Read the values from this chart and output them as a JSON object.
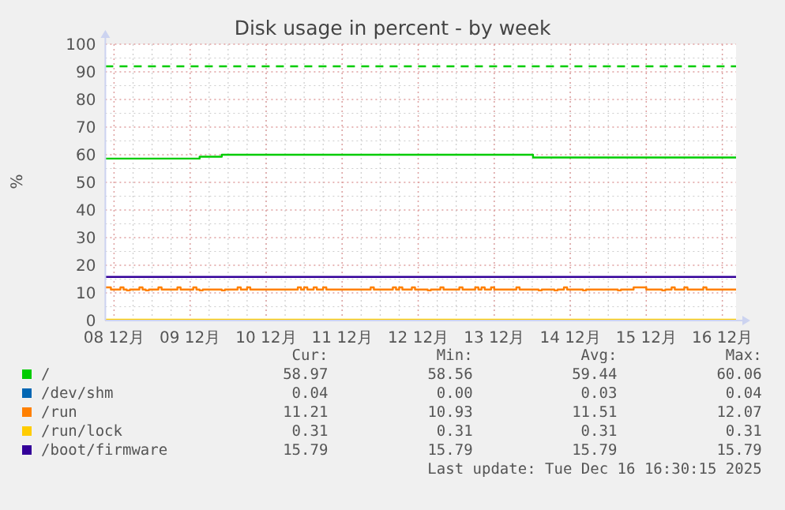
{
  "chart_data": {
    "type": "step",
    "title": "Disk usage in percent - by week",
    "ylabel": "%",
    "xlim": [
      "2025-12-07T21:15",
      "2025-12-16T04:20"
    ],
    "xticks": [
      {
        "value": "2025-12-08T00:00",
        "label": "08 12月"
      },
      {
        "value": "2025-12-09T00:00",
        "label": "09 12月"
      },
      {
        "value": "2025-12-10T00:00",
        "label": "10 12月"
      },
      {
        "value": "2025-12-11T00:00",
        "label": "11 12月"
      },
      {
        "value": "2025-12-12T00:00",
        "label": "12 12月"
      },
      {
        "value": "2025-12-13T00:00",
        "label": "13 12月"
      },
      {
        "value": "2025-12-14T00:00",
        "label": "14 12月"
      },
      {
        "value": "2025-12-15T00:00",
        "label": "15 12月"
      },
      {
        "value": "2025-12-16T00:00",
        "label": "16 12月"
      }
    ],
    "ylim": [
      0,
      100
    ],
    "yticks": [
      0,
      10,
      20,
      30,
      40,
      50,
      60,
      70,
      80,
      90,
      100
    ],
    "grid": true,
    "legend": "bottom",
    "series": [
      {
        "name": "/",
        "color": "#00cc00",
        "x": [
          "2025-12-07T21:15",
          "2025-12-09T03:00",
          "2025-12-09T10:00",
          "2025-12-13T12:15",
          "2025-12-16T04:20"
        ],
        "values": [
          58.6,
          59.3,
          60.0,
          59.0,
          59.0
        ]
      },
      {
        "name": "/dev/shm",
        "color": "#0066b3"
      },
      {
        "name": "/run",
        "color": "#ff8000",
        "x": [
          "2025-12-07T21:15",
          "2025-12-07T23:00",
          "2025-12-08T02:00",
          "2025-12-08T03:00",
          "2025-12-08T04:00",
          "2025-12-08T05:00",
          "2025-12-08T08:00",
          "2025-12-08T09:00",
          "2025-12-08T10:00",
          "2025-12-08T11:00",
          "2025-12-08T14:00",
          "2025-12-08T15:00",
          "2025-12-08T20:00",
          "2025-12-08T21:00",
          "2025-12-09T01:00",
          "2025-12-09T02:00",
          "2025-12-09T03:00",
          "2025-12-09T04:00",
          "2025-12-09T10:00",
          "2025-12-09T11:00",
          "2025-12-09T15:00",
          "2025-12-09T16:00",
          "2025-12-09T18:00",
          "2025-12-09T19:00",
          "2025-12-10T10:00",
          "2025-12-10T11:00",
          "2025-12-10T12:00",
          "2025-12-10T13:00",
          "2025-12-10T15:00",
          "2025-12-10T16:00",
          "2025-12-10T18:00",
          "2025-12-10T19:00",
          "2025-12-11T09:00",
          "2025-12-11T10:00",
          "2025-12-11T16:00",
          "2025-12-11T17:00",
          "2025-12-11T18:00",
          "2025-12-11T19:00",
          "2025-12-11T22:00",
          "2025-12-11T23:00",
          "2025-12-12T03:00",
          "2025-12-12T04:00",
          "2025-12-12T07:00",
          "2025-12-12T08:00",
          "2025-12-12T13:00",
          "2025-12-12T14:00",
          "2025-12-12T18:00",
          "2025-12-12T19:00",
          "2025-12-12T20:00",
          "2025-12-12T21:00",
          "2025-12-12T23:00",
          "2025-12-13T00:00",
          "2025-12-13T07:00",
          "2025-12-13T08:00",
          "2025-12-13T14:00",
          "2025-12-13T15:00",
          "2025-12-13T19:00",
          "2025-12-13T20:00",
          "2025-12-13T22:00",
          "2025-12-13T23:00",
          "2025-12-14T04:00",
          "2025-12-14T05:00",
          "2025-12-14T15:00",
          "2025-12-14T16:00",
          "2025-12-14T20:00",
          "2025-12-15T00:00",
          "2025-12-15T05:00",
          "2025-12-15T06:00",
          "2025-12-15T08:00",
          "2025-12-15T09:00",
          "2025-12-15T12:00",
          "2025-12-15T13:00",
          "2025-12-15T18:00",
          "2025-12-15T19:00",
          "2025-12-16T04:20"
        ],
        "values": [
          12.0,
          11.2,
          12.0,
          11.2,
          10.9,
          11.2,
          12.0,
          11.2,
          10.9,
          11.2,
          12.0,
          11.2,
          12.0,
          11.2,
          12.0,
          11.2,
          10.9,
          11.2,
          10.9,
          11.2,
          12.0,
          11.2,
          12.0,
          11.2,
          12.0,
          11.2,
          12.0,
          11.2,
          12.0,
          11.2,
          12.0,
          11.2,
          12.0,
          11.2,
          12.0,
          11.2,
          12.0,
          11.2,
          12.0,
          11.2,
          10.9,
          11.2,
          12.0,
          11.2,
          12.0,
          11.2,
          12.0,
          11.2,
          12.0,
          11.2,
          12.0,
          11.2,
          12.0,
          11.2,
          10.9,
          11.2,
          10.9,
          11.2,
          12.0,
          11.2,
          10.9,
          11.2,
          10.9,
          11.2,
          12.0,
          11.2,
          10.9,
          11.2,
          12.0,
          11.2,
          12.0,
          11.2,
          12.0,
          11.2,
          11.2
        ]
      },
      {
        "name": "/run/lock",
        "color": "#ffcc00",
        "x": [
          "2025-12-07T21:15",
          "2025-12-16T04:20"
        ],
        "values": [
          0.3,
          0.3
        ]
      },
      {
        "name": "/boot/firmware",
        "color": "#330099",
        "x": [
          "2025-12-07T21:15",
          "2025-12-16T04:20"
        ],
        "values": [
          15.8,
          15.8
        ]
      }
    ],
    "ref_lines": [
      {
        "axis": "y",
        "value": 92,
        "color": "#00cc00",
        "line_style": "dashed"
      }
    ],
    "annotations": [
      "Cur:",
      "Min:",
      "Avg:",
      "Max:",
      "58.97",
      "58.56",
      "59.44",
      "60.06",
      "0.04",
      "0.00",
      "0.03",
      "0.04",
      "11.21",
      "10.93",
      "11.51",
      "12.07",
      "0.31",
      "0.31",
      "0.31",
      "0.31",
      "15.79",
      "15.79",
      "15.79",
      "15.79",
      "Last update: Tue Dec 16 16:30:15 2025"
    ]
  }
}
